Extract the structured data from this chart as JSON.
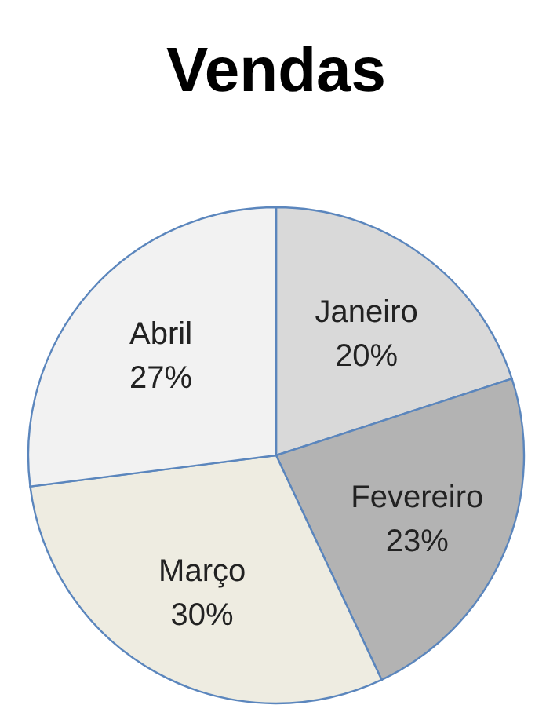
{
  "chart_data": {
    "type": "pie",
    "title": "Vendas",
    "categories": [
      "Janeiro",
      "Fevereiro",
      "Março",
      "Abril"
    ],
    "values": [
      20,
      23,
      30,
      27
    ],
    "value_labels": [
      "20%",
      "23%",
      "30%",
      "27%"
    ],
    "colors": [
      "#d9d9d9",
      "#b3b3b3",
      "#eeece1",
      "#f2f2f2"
    ],
    "legend": false
  }
}
